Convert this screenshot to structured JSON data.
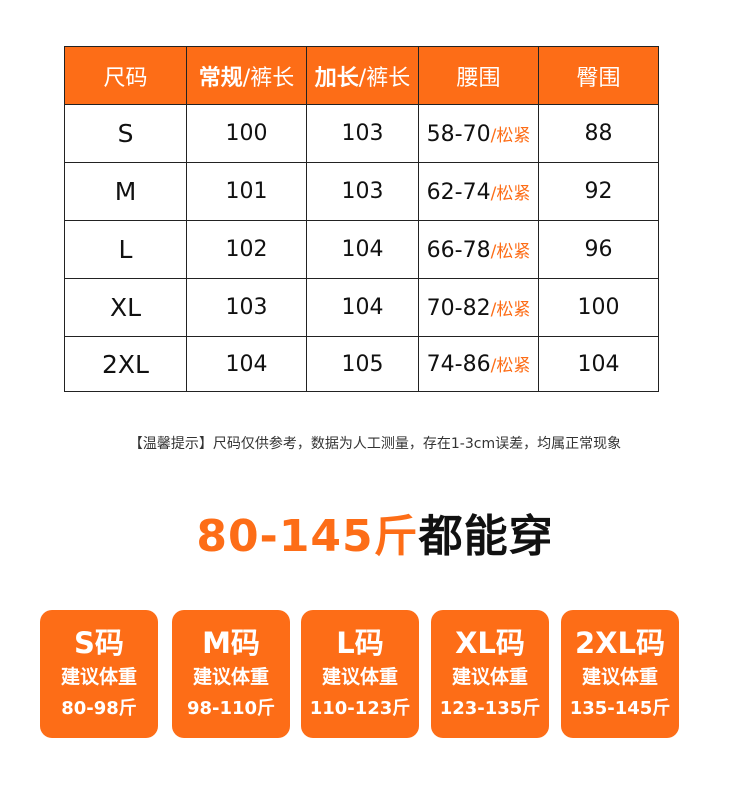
{
  "table": {
    "headers": [
      {
        "bold": "",
        "rest": "尺码"
      },
      {
        "bold": "常规",
        "rest": "/裤长"
      },
      {
        "bold": "加长",
        "rest": "/裤长"
      },
      {
        "bold": "",
        "rest": "腰围"
      },
      {
        "bold": "",
        "rest": "臀围"
      }
    ],
    "tight_label": "/松紧",
    "rows": [
      {
        "size": "S",
        "regular": "100",
        "long": "103",
        "waist": "58-70",
        "hip": "88"
      },
      {
        "size": "M",
        "regular": "101",
        "long": "103",
        "waist": "62-74",
        "hip": "92"
      },
      {
        "size": "L",
        "regular": "102",
        "long": "104",
        "waist": "66-78",
        "hip": "96"
      },
      {
        "size": "XL",
        "regular": "103",
        "long": "104",
        "waist": "70-82",
        "hip": "100"
      },
      {
        "size": "2XL",
        "regular": "104",
        "long": "105",
        "waist": "74-86",
        "hip": "104"
      }
    ]
  },
  "tip": "【温馨提示】尺码仅供参考，数据为人工测量，存在1-3cm误差，均属正常现象",
  "headline": {
    "orange": "80-145斤",
    "black": "都能穿"
  },
  "cards": [
    {
      "title": "S码",
      "label": "建议体重",
      "range": "80-98斤"
    },
    {
      "title": "M码",
      "label": "建议体重",
      "range": "98-110斤"
    },
    {
      "title": "L码",
      "label": "建议体重",
      "range": "110-123斤"
    },
    {
      "title": "XL码",
      "label": "建议体重",
      "range": "123-135斤"
    },
    {
      "title": "2XL码",
      "label": "建议体重",
      "range": "135-145斤"
    }
  ],
  "colors": {
    "accent": "#fd6d17"
  }
}
